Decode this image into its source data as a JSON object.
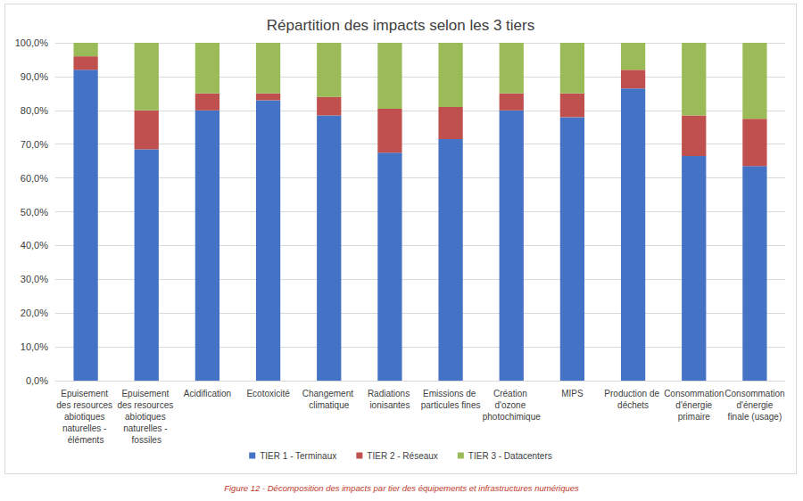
{
  "chart_data": {
    "type": "bar",
    "title": "Répartition des impacts selon les 3 tiers",
    "caption": "Figure 12 - Décomposition des impacts par tier des équipements et infrastructures numériques",
    "categories": [
      "Epuisement des resources abiotiques naturelles - éléments",
      "Epuisement des resources abiotiques naturelles - fossiles",
      "Acidification",
      "Ecotoxicité",
      "Changement climatique",
      "Radiations ionisantes",
      "Emissions de particules fines",
      "Création d'ozone photochimique",
      "MIPS",
      "Production de déchets",
      "Consommation d'énergie primaire",
      "Consommation d'énergie finale (usage)"
    ],
    "series": [
      {
        "name": "TIER 1 - Terminaux",
        "color": "#4472c4",
        "values": [
          92,
          68.5,
          80,
          83,
          78.5,
          67.5,
          71.5,
          80,
          78,
          86.5,
          66.5,
          63.5
        ]
      },
      {
        "name": "TIER 2 - Réseaux",
        "color": "#c0504d",
        "values": [
          4,
          11.5,
          5,
          2,
          5.5,
          13,
          9.5,
          5,
          7,
          5.5,
          12,
          14
        ]
      },
      {
        "name": "TIER 3 - Datacenters",
        "color": "#9bbb59",
        "values": [
          4,
          20,
          15,
          15,
          16,
          19.5,
          19,
          15,
          15,
          8,
          21.5,
          22.5
        ]
      }
    ],
    "stacked": true,
    "ylim": [
      0,
      100
    ],
    "yticks": [
      {
        "value": 0,
        "label": "0,0%"
      },
      {
        "value": 10,
        "label": "10,0%"
      },
      {
        "value": 20,
        "label": "20,0%"
      },
      {
        "value": 30,
        "label": "30,0%"
      },
      {
        "value": 40,
        "label": "40,0%"
      },
      {
        "value": 50,
        "label": "50,0%"
      },
      {
        "value": 60,
        "label": "60,0%"
      },
      {
        "value": 70,
        "label": "70,0%"
      },
      {
        "value": 80,
        "label": "80,0%"
      },
      {
        "value": 90,
        "label": "90,0%"
      },
      {
        "value": 100,
        "label": "100,0%"
      }
    ],
    "grid": true,
    "legend": "bottom"
  }
}
